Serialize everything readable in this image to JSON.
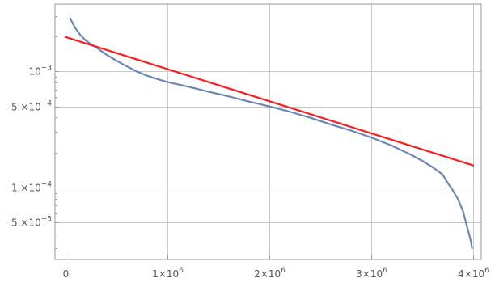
{
  "chart_data": {
    "type": "line",
    "title": "",
    "xlabel": "",
    "ylabel": "",
    "x_scale": "linear",
    "y_scale": "log",
    "xlim": [
      -100000,
      4080000
    ],
    "ylim": [
      2.4e-05,
      0.0038
    ],
    "grid": true,
    "legend": "none",
    "x_ticks": [
      {
        "value": 0,
        "label": "0",
        "base": "0",
        "exp": ""
      },
      {
        "value": 1000000,
        "label": "1×10^6",
        "base": "1×10",
        "exp": "6"
      },
      {
        "value": 2000000,
        "label": "2×10^6",
        "base": "2×10",
        "exp": "6"
      },
      {
        "value": 3000000,
        "label": "3×10^6",
        "base": "3×10",
        "exp": "6"
      },
      {
        "value": 4000000,
        "label": "4×10^6",
        "base": "4×10",
        "exp": "6"
      }
    ],
    "y_ticks": [
      {
        "value": 5e-05,
        "base": "5.×10",
        "exp": "−5"
      },
      {
        "value": 0.0001,
        "base": "1.×10",
        "exp": "−4"
      },
      {
        "value": 0.0005,
        "base": "5.×10",
        "exp": "−4"
      },
      {
        "value": 0.001,
        "base": "10",
        "exp": "−3"
      }
    ],
    "series": [
      {
        "color": "#6a86b9",
        "points": [
          [
            50000,
            0.00285
          ],
          [
            100000,
            0.00235
          ],
          [
            150000,
            0.00205
          ],
          [
            200000,
            0.00185
          ],
          [
            250000,
            0.00172
          ],
          [
            300000,
            0.00162
          ],
          [
            400000,
            0.0014
          ],
          [
            500000,
            0.00124
          ],
          [
            600000,
            0.00111
          ],
          [
            700000,
            0.001
          ],
          [
            800000,
            0.00092
          ],
          [
            900000,
            0.00086
          ],
          [
            1000000,
            0.00081
          ],
          [
            1200000,
            0.00074
          ],
          [
            1400000,
            0.00067
          ],
          [
            1600000,
            0.00061
          ],
          [
            1800000,
            0.00055
          ],
          [
            2000000,
            0.0005
          ],
          [
            2200000,
            0.00045
          ],
          [
            2400000,
            0.0004
          ],
          [
            2600000,
            0.00035
          ],
          [
            2800000,
            0.00031
          ],
          [
            3000000,
            0.00027
          ],
          [
            3200000,
            0.00023
          ],
          [
            3400000,
            0.00019
          ],
          [
            3500000,
            0.00017
          ],
          [
            3600000,
            0.00015
          ],
          [
            3700000,
            0.00013
          ],
          [
            3750000,
            0.00011
          ],
          [
            3800000,
            9.5e-05
          ],
          [
            3850000,
            8e-05
          ],
          [
            3900000,
            6.3e-05
          ],
          [
            3930000,
            5e-05
          ],
          [
            3960000,
            4e-05
          ],
          [
            3980000,
            3.4e-05
          ],
          [
            3990000,
            3e-05
          ]
        ]
      },
      {
        "color": "#ff1a1a",
        "points": [
          [
            0,
            0.00198
          ],
          [
            4000000,
            0.000155
          ]
        ]
      }
    ]
  }
}
